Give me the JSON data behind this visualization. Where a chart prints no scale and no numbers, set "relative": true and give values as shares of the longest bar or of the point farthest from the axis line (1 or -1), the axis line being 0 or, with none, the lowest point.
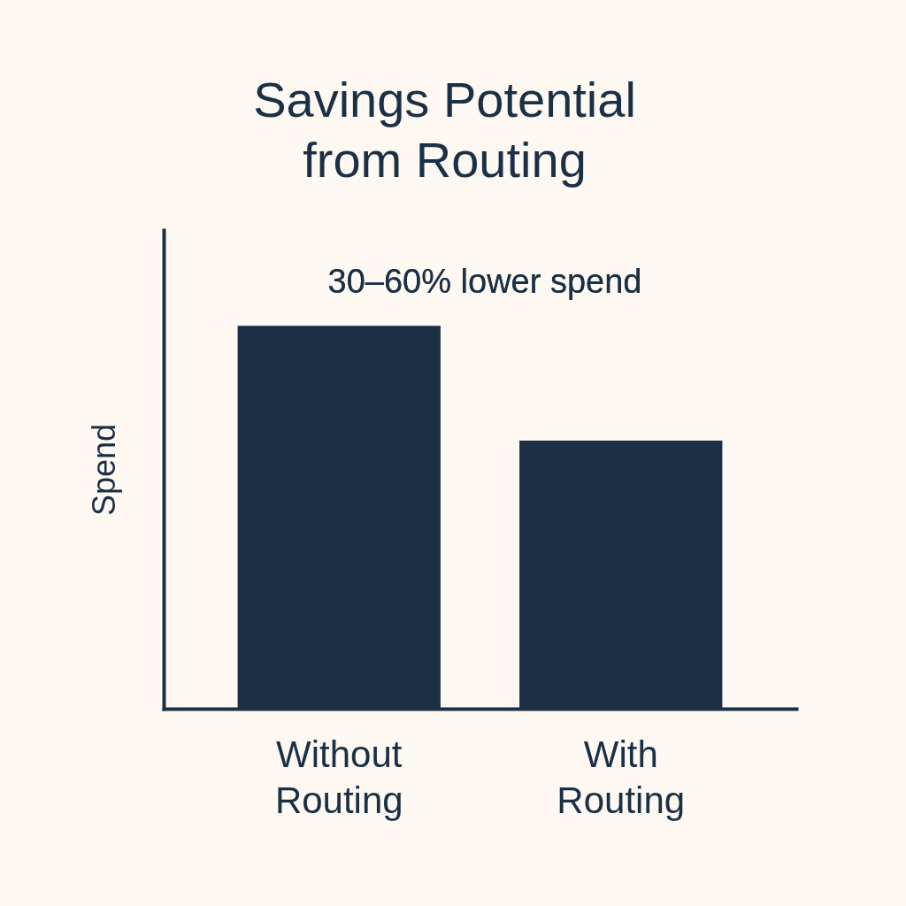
{
  "chart_data": {
    "type": "bar",
    "title": "Savings Potential from Routing",
    "ylabel": "Spend",
    "relative": true,
    "categories": [
      "Without Routing",
      "With Routing"
    ],
    "values": [
      1,
      0.7
    ],
    "color": "#1b2f45",
    "annotations": [
      "30–60% lower spend"
    ],
    "grid": false
  }
}
